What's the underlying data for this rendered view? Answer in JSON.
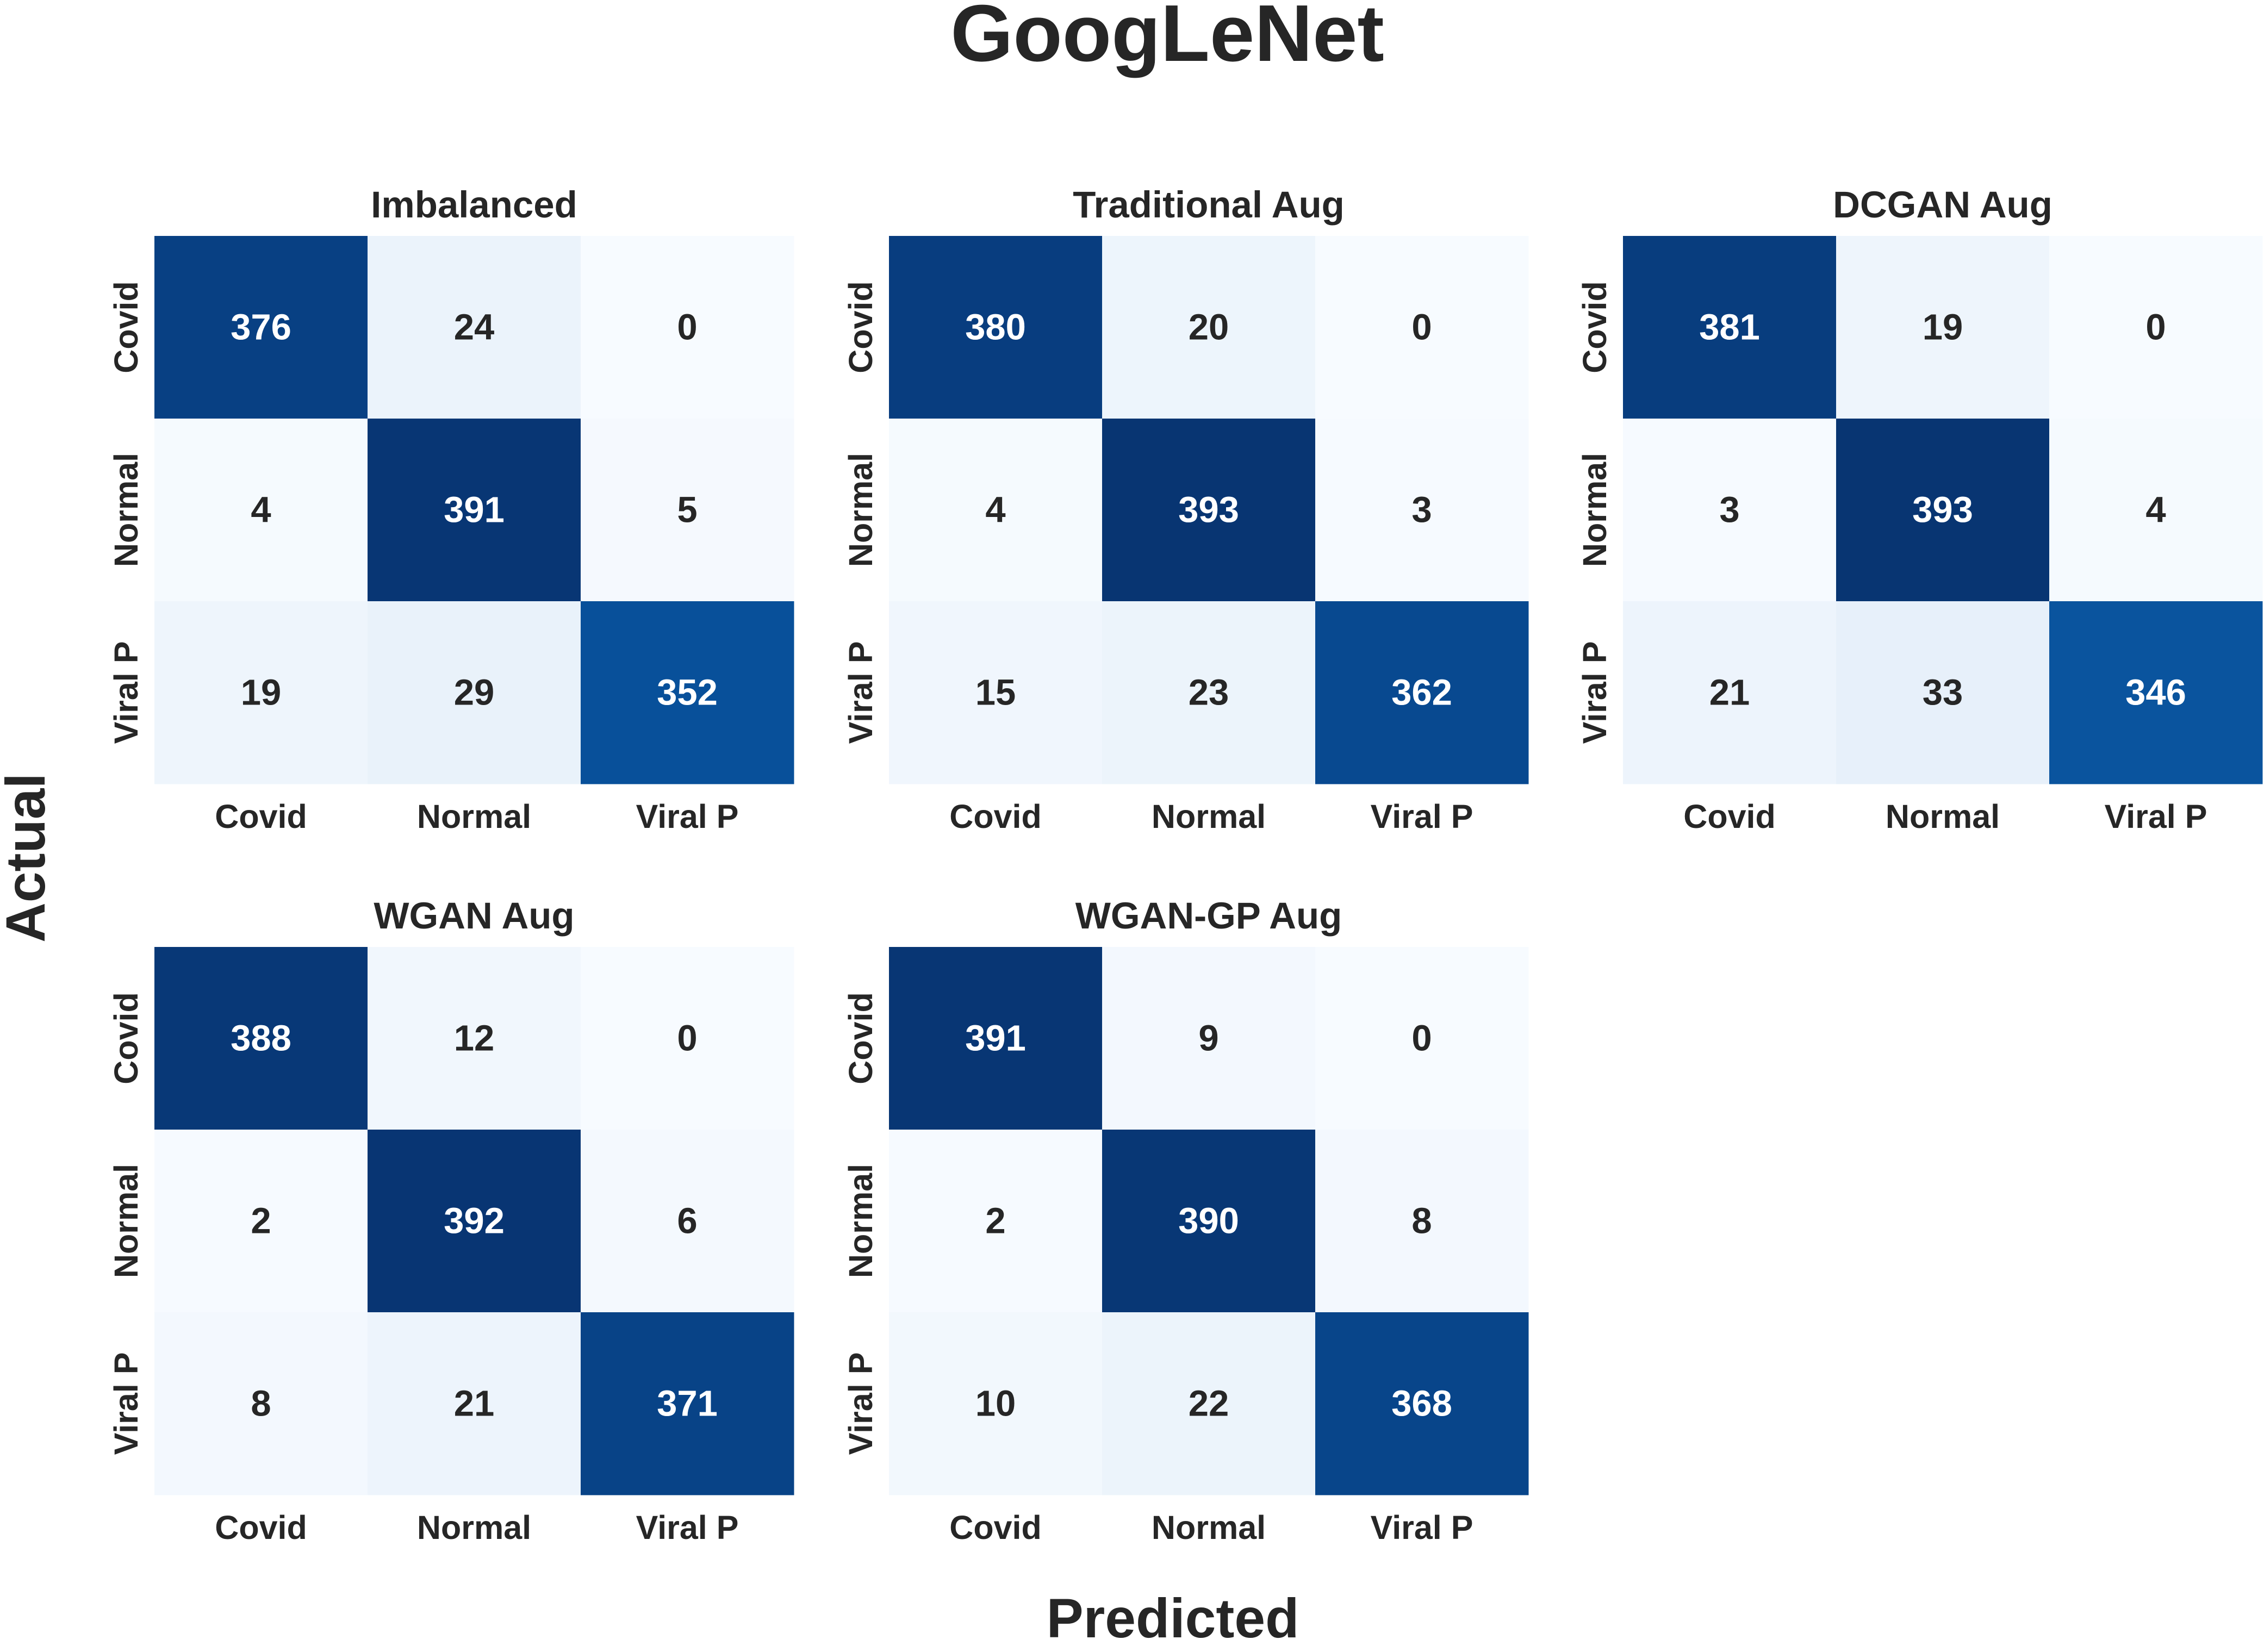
{
  "figure": {
    "title": "GoogLeNet",
    "xlabel": "Predicted",
    "ylabel": "Actual"
  },
  "colors": {
    "text": "#262626",
    "cmap": "Blues",
    "cmap_low": "#f7fbff",
    "cmap_high": "#08306b",
    "annot_light": "#ffffff",
    "annot_dark": "#262626"
  },
  "chart_data": [
    {
      "type": "heatmap",
      "title": "Imbalanced",
      "x_tick_labels": [
        "Covid",
        "Normal",
        "Viral P"
      ],
      "y_tick_labels": [
        "Covid",
        "Normal",
        "Viral P"
      ],
      "matrix": [
        [
          376,
          24,
          0
        ],
        [
          4,
          391,
          5
        ],
        [
          19,
          29,
          352
        ]
      ],
      "color_range": [
        0,
        400
      ],
      "colorbar": false
    },
    {
      "type": "heatmap",
      "title": "Traditional Aug",
      "x_tick_labels": [
        "Covid",
        "Normal",
        "Viral P"
      ],
      "y_tick_labels": [
        "Covid",
        "Normal",
        "Viral P"
      ],
      "matrix": [
        [
          380,
          20,
          0
        ],
        [
          4,
          393,
          3
        ],
        [
          15,
          23,
          362
        ]
      ],
      "color_range": [
        0,
        400
      ],
      "colorbar": false
    },
    {
      "type": "heatmap",
      "title": "DCGAN Aug",
      "x_tick_labels": [
        "Covid",
        "Normal",
        "Viral P"
      ],
      "y_tick_labels": [
        "Covid",
        "Normal",
        "Viral P"
      ],
      "matrix": [
        [
          381,
          19,
          0
        ],
        [
          3,
          393,
          4
        ],
        [
          21,
          33,
          346
        ]
      ],
      "color_range": [
        0,
        400
      ],
      "colorbar": false
    },
    {
      "type": "heatmap",
      "title": "WGAN Aug",
      "x_tick_labels": [
        "Covid",
        "Normal",
        "Viral P"
      ],
      "y_tick_labels": [
        "Covid",
        "Normal",
        "Viral P"
      ],
      "matrix": [
        [
          388,
          12,
          0
        ],
        [
          2,
          392,
          6
        ],
        [
          8,
          21,
          371
        ]
      ],
      "color_range": [
        0,
        400
      ],
      "colorbar": false
    },
    {
      "type": "heatmap",
      "title": "WGAN-GP Aug",
      "x_tick_labels": [
        "Covid",
        "Normal",
        "Viral P"
      ],
      "y_tick_labels": [
        "Covid",
        "Normal",
        "Viral P"
      ],
      "matrix": [
        [
          391,
          9,
          0
        ],
        [
          2,
          390,
          8
        ],
        [
          10,
          22,
          368
        ]
      ],
      "color_range": [
        0,
        400
      ],
      "colorbar": false
    }
  ]
}
